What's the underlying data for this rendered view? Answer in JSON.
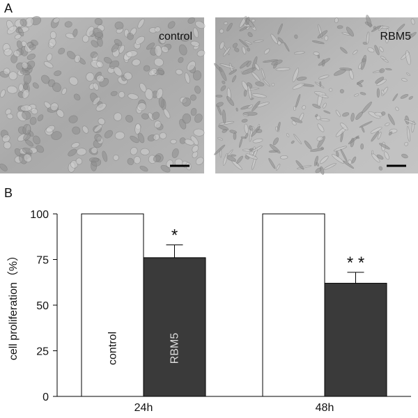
{
  "panels": {
    "a": {
      "label": "A",
      "images": [
        {
          "label": "control"
        },
        {
          "label": "RBM5"
        }
      ]
    },
    "b": {
      "label": "B"
    }
  },
  "chart_data": {
    "type": "bar",
    "ylabel": "cell proliferation（%）",
    "categories": [
      "24h",
      "48h"
    ],
    "series": [
      {
        "name": "control",
        "color": "#ffffff",
        "values": [
          100,
          100
        ]
      },
      {
        "name": "RBM5",
        "color": "#3a3a3a",
        "values": [
          76,
          62
        ],
        "errors": [
          7,
          6
        ]
      }
    ],
    "annotations": [
      "*",
      "* *"
    ],
    "ylim": [
      0,
      100
    ],
    "yticks": [
      0,
      25,
      50,
      75,
      100
    ]
  }
}
